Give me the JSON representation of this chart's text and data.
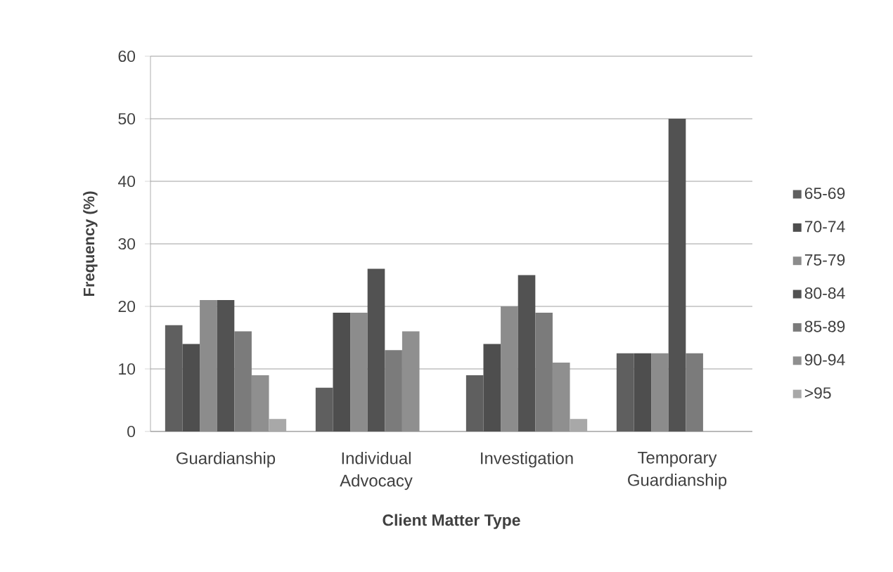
{
  "chart_data": {
    "type": "bar",
    "xlabel": "Client Matter Type",
    "ylabel": "Frequency (%)",
    "categories": [
      "Guardianship",
      "Individual Advocacy",
      "Investigation",
      "Temporary Guardianship"
    ],
    "series": [
      {
        "name": "65-69",
        "color": "#5f5f5f",
        "values": [
          17,
          7,
          9,
          12.5
        ]
      },
      {
        "name": "70-74",
        "color": "#4e4e4e",
        "values": [
          14,
          19,
          14,
          12.5
        ]
      },
      {
        "name": "75-79",
        "color": "#8c8c8c",
        "values": [
          21,
          19,
          20,
          12.5
        ]
      },
      {
        "name": "80-84",
        "color": "#525252",
        "values": [
          21,
          26,
          25,
          50
        ]
      },
      {
        "name": "85-89",
        "color": "#7b7b7b",
        "values": [
          16,
          13,
          19,
          12.5
        ]
      },
      {
        "name": "90-94",
        "color": "#8f8f8f",
        "values": [
          9,
          16,
          11,
          0
        ]
      },
      {
        "name": ">95",
        "color": "#a8a8a8",
        "values": [
          2,
          0,
          2,
          0
        ]
      }
    ],
    "ylim": [
      0,
      60
    ],
    "yticks": [
      0,
      10,
      20,
      30,
      40,
      50,
      60
    ],
    "grid": "y",
    "legend": "right"
  }
}
